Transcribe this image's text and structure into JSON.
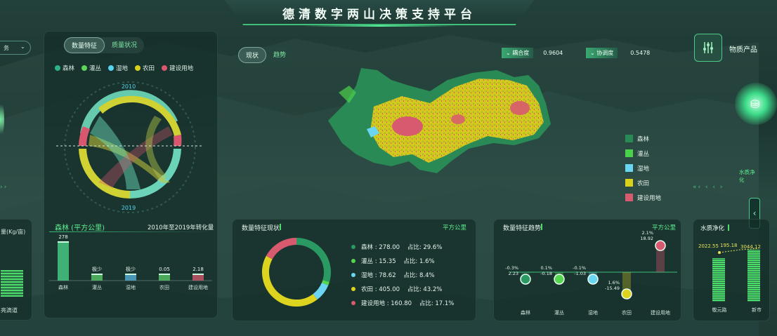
{
  "title": "德清数字两山决策支持平台",
  "left_edge": {
    "dropdown_label": "务",
    "bottom_label": "亮滴道",
    "header_label": "量(Kg/亩)"
  },
  "left_panel": {
    "tabs": [
      {
        "label": "数量特征",
        "active": true
      },
      {
        "label": "质量状况",
        "active": false
      }
    ],
    "legend": [
      {
        "name": "森林",
        "color": "#2db38a"
      },
      {
        "name": "灌丛",
        "color": "#5cd35a"
      },
      {
        "name": "湿地",
        "color": "#58d3ee"
      },
      {
        "name": "农田",
        "color": "#d8d21e"
      },
      {
        "name": "建设用地",
        "color": "#d9576e"
      }
    ],
    "chord_year_top": "2010",
    "chord_year_bottom": "2019"
  },
  "bar_panel": {
    "title": "森林 (平方公里)",
    "subtitle": "2010年至2019年转化量",
    "chart_data": {
      "type": "bar",
      "categories": [
        "森林",
        "灌丛",
        "湿地",
        "农田",
        "建设用地"
      ],
      "values": [
        278,
        0,
        0,
        0.05,
        2.18
      ],
      "value_labels": [
        "278",
        "极少",
        "极少",
        "0.05",
        "2.18"
      ]
    }
  },
  "center": {
    "tabs": [
      {
        "label": "现状",
        "active": true
      },
      {
        "label": "趋势",
        "active": false
      }
    ],
    "coupling": {
      "label": "耦合度",
      "value": "0.9604"
    },
    "coordination": {
      "label": "协调度",
      "value": "0.5478"
    },
    "map_legend": [
      {
        "name": "森林",
        "color": "#2a8a55"
      },
      {
        "name": "灌丛",
        "color": "#4bd24b"
      },
      {
        "name": "湿地",
        "color": "#6ad6f2"
      },
      {
        "name": "农田",
        "color": "#d9d21c"
      },
      {
        "name": "建设用地",
        "color": "#d85a6e"
      }
    ]
  },
  "donut_panel": {
    "title": "数量特征现状",
    "unit": "平方公里",
    "chart_data": {
      "type": "pie",
      "items": [
        {
          "name": "森林",
          "value": 278.0,
          "share": "29.6%",
          "color": "#2a9a62"
        },
        {
          "name": "灌丛",
          "value": 15.35,
          "share": "1.6%",
          "color": "#55d64e"
        },
        {
          "name": "湿地",
          "value": 78.62,
          "share": "8.4%",
          "color": "#6ad6f2"
        },
        {
          "name": "农田",
          "value": 405.0,
          "share": "43.2%",
          "color": "#dcd41e"
        },
        {
          "name": "建设用地",
          "value": 160.8,
          "share": "17.1%",
          "color": "#d85a6e"
        }
      ],
      "rows": [
        "森林 : 278.00    占比: 29.6%",
        "灌丛 : 15.35    占比: 1.6%",
        "湿地 : 78.62    占比: 8.4%",
        "农田 : 405.00    占比: 43.2%",
        "建设用地 : 160.80    占比: 17.1%"
      ]
    }
  },
  "trend_panel": {
    "title": "数量特征趋势",
    "unit": "平方公里",
    "chart_data": {
      "type": "bar",
      "categories": [
        "森林",
        "灌丛",
        "湿地",
        "农田",
        "建设用地"
      ],
      "values": [
        2.23,
        -0.18,
        -1.03,
        -15.49,
        18.92
      ],
      "pct_labels": [
        "-0.3%",
        "0.1%",
        "-0.1%",
        "1.6%",
        "2.1%"
      ],
      "value_labels": [
        "2.23",
        "-0.18",
        "-1.03",
        "-15.49",
        "18.92"
      ],
      "colors": [
        "#2a9a62",
        "#55d64e",
        "#6ad6f2",
        "#dcd41e",
        "#d85a6e"
      ]
    }
  },
  "right_panel": {
    "title": "水质净化",
    "product_label": "物质产品",
    "side_label": "水质净化",
    "chart_data": {
      "type": "bar",
      "categories": [
        "敬元路",
        "新市"
      ],
      "line_labels": [
        "2022.55",
        "195.18",
        "3044.12"
      ]
    }
  }
}
